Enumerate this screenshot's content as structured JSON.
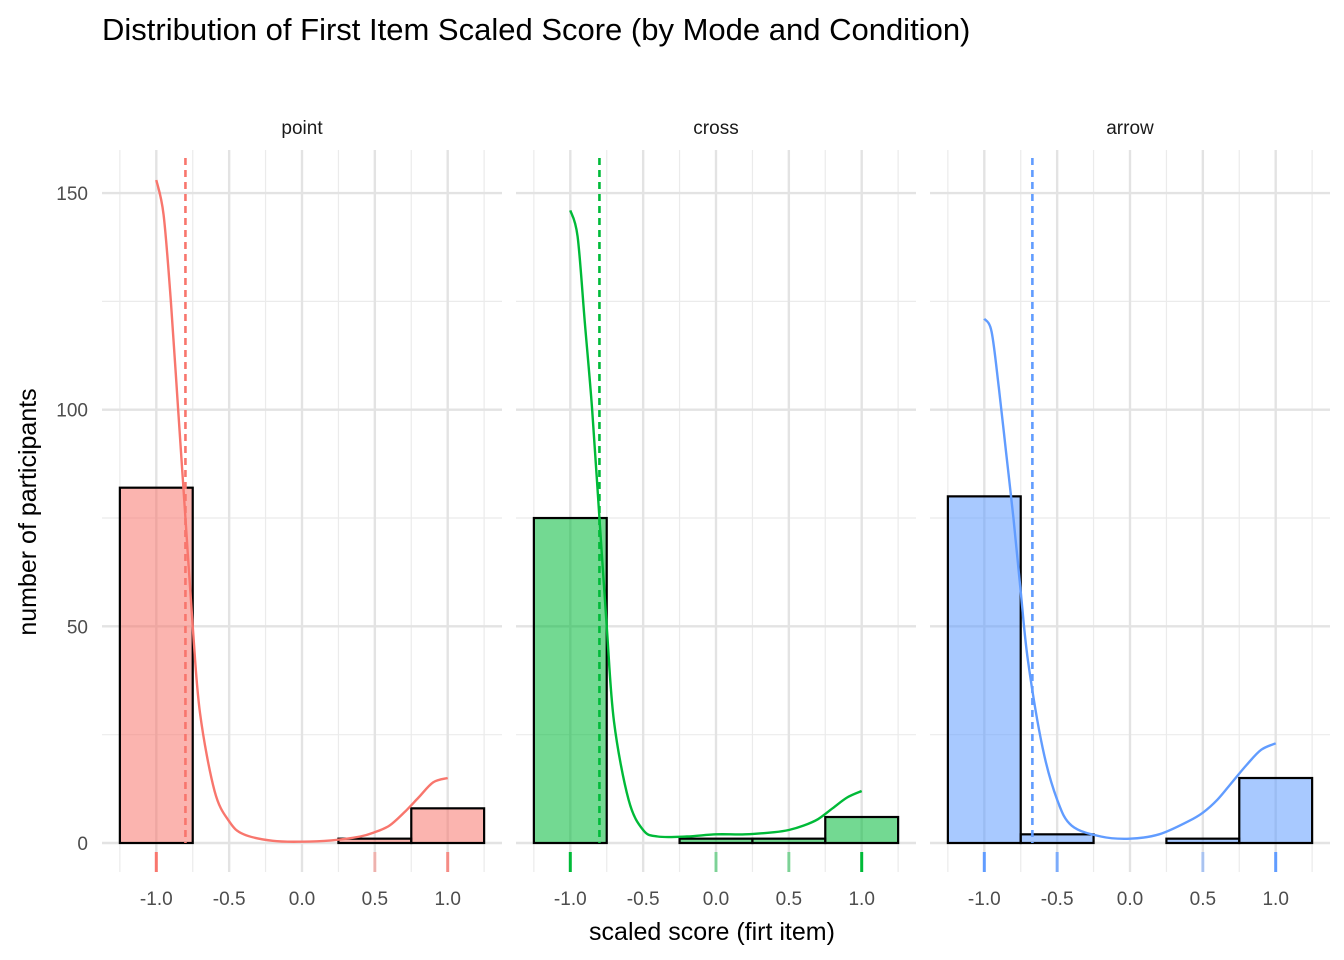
{
  "chart_data": {
    "type": "bar",
    "title": "Distribution of First Item Scaled Score (by Mode and Condition)",
    "xlabel": "scaled score (firt item)",
    "ylabel": "number of participants",
    "xlim": [
      -1.3,
      1.3
    ],
    "ylim": [
      0,
      160
    ],
    "x_ticks": [
      -1.0,
      -0.5,
      0.0,
      0.5,
      1.0
    ],
    "x_tick_labels": [
      "-1.0",
      "-0.5",
      "0.0",
      "0.5",
      "1.0"
    ],
    "y_ticks": [
      0,
      50,
      100,
      150
    ],
    "y_tick_labels": [
      "0",
      "50",
      "100",
      "150"
    ],
    "bin_width": 0.5,
    "grid": true,
    "legend": "none",
    "panels": [
      {
        "name": "point",
        "color": "#F8766D",
        "bins": [
          {
            "x0": -1.25,
            "x1": -0.75,
            "count": 82
          },
          {
            "x0": -0.75,
            "x1": -0.25,
            "count": 0
          },
          {
            "x0": -0.25,
            "x1": 0.25,
            "count": 0
          },
          {
            "x0": 0.25,
            "x1": 0.75,
            "count": 1
          },
          {
            "x0": 0.75,
            "x1": 1.25,
            "count": 8
          }
        ],
        "mean": -0.8,
        "density": [
          [
            -1.0,
            153
          ],
          [
            -0.95,
            145
          ],
          [
            -0.9,
            125
          ],
          [
            -0.85,
            100
          ],
          [
            -0.8,
            75
          ],
          [
            -0.75,
            50
          ],
          [
            -0.7,
            30
          ],
          [
            -0.6,
            12
          ],
          [
            -0.5,
            5
          ],
          [
            -0.4,
            2
          ],
          [
            -0.2,
            0.5
          ],
          [
            0.0,
            0.3
          ],
          [
            0.2,
            0.6
          ],
          [
            0.4,
            1.5
          ],
          [
            0.5,
            2.5
          ],
          [
            0.6,
            4
          ],
          [
            0.7,
            7
          ],
          [
            0.8,
            10.5
          ],
          [
            0.9,
            14
          ],
          [
            1.0,
            15
          ]
        ],
        "rug": [
          {
            "x": -1.0,
            "strength": "high"
          },
          {
            "x": 0.5,
            "strength": "low"
          },
          {
            "x": 1.0,
            "strength": "medium"
          }
        ]
      },
      {
        "name": "cross",
        "color": "#00BA38",
        "bins": [
          {
            "x0": -1.25,
            "x1": -0.75,
            "count": 75
          },
          {
            "x0": -0.75,
            "x1": -0.25,
            "count": 0
          },
          {
            "x0": -0.25,
            "x1": 0.25,
            "count": 1
          },
          {
            "x0": 0.25,
            "x1": 0.75,
            "count": 1
          },
          {
            "x0": 0.75,
            "x1": 1.25,
            "count": 6
          }
        ],
        "mean": -0.8,
        "density": [
          [
            -1.0,
            146
          ],
          [
            -0.95,
            140
          ],
          [
            -0.9,
            120
          ],
          [
            -0.85,
            100
          ],
          [
            -0.8,
            75
          ],
          [
            -0.75,
            50
          ],
          [
            -0.7,
            28
          ],
          [
            -0.6,
            10
          ],
          [
            -0.5,
            3
          ],
          [
            -0.4,
            1.5
          ],
          [
            -0.2,
            1.5
          ],
          [
            0.0,
            2
          ],
          [
            0.2,
            2
          ],
          [
            0.4,
            2.5
          ],
          [
            0.5,
            3
          ],
          [
            0.6,
            4
          ],
          [
            0.7,
            5.5
          ],
          [
            0.8,
            8
          ],
          [
            0.9,
            10.5
          ],
          [
            1.0,
            12
          ]
        ],
        "rug": [
          {
            "x": -1.0,
            "strength": "high"
          },
          {
            "x": 0.0,
            "strength": "low"
          },
          {
            "x": 0.5,
            "strength": "low"
          },
          {
            "x": 1.0,
            "strength": "high"
          }
        ]
      },
      {
        "name": "arrow",
        "color": "#619CFF",
        "bins": [
          {
            "x0": -1.25,
            "x1": -0.75,
            "count": 80
          },
          {
            "x0": -0.75,
            "x1": -0.25,
            "count": 2
          },
          {
            "x0": -0.25,
            "x1": 0.25,
            "count": 0
          },
          {
            "x0": 0.25,
            "x1": 0.75,
            "count": 1
          },
          {
            "x0": 0.75,
            "x1": 1.25,
            "count": 15
          }
        ],
        "mean": -0.67,
        "density": [
          [
            -1.0,
            121
          ],
          [
            -0.95,
            118
          ],
          [
            -0.9,
            105
          ],
          [
            -0.85,
            90
          ],
          [
            -0.8,
            75
          ],
          [
            -0.75,
            58
          ],
          [
            -0.7,
            42
          ],
          [
            -0.6,
            22
          ],
          [
            -0.5,
            10
          ],
          [
            -0.4,
            4
          ],
          [
            -0.2,
            1.5
          ],
          [
            0.0,
            1
          ],
          [
            0.2,
            2
          ],
          [
            0.4,
            5
          ],
          [
            0.5,
            7
          ],
          [
            0.6,
            10
          ],
          [
            0.7,
            14
          ],
          [
            0.8,
            18
          ],
          [
            0.9,
            21.5
          ],
          [
            1.0,
            23
          ]
        ],
        "rug": [
          {
            "x": -1.0,
            "strength": "high"
          },
          {
            "x": -0.5,
            "strength": "medium"
          },
          {
            "x": 0.5,
            "strength": "low"
          },
          {
            "x": 1.0,
            "strength": "high"
          }
        ]
      }
    ]
  }
}
